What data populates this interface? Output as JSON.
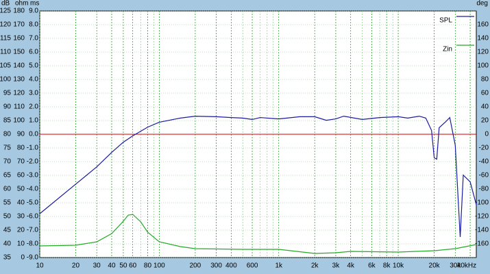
{
  "chart_data": {
    "type": "line",
    "xscale": "log",
    "xlim": [
      10,
      45000
    ],
    "xticks": [
      10,
      20,
      30,
      40,
      50,
      60,
      80,
      100,
      200,
      300,
      400,
      600,
      {
        "value": 1000,
        "label": "1k"
      },
      {
        "value": 2000,
        "label": "2k"
      },
      {
        "value": 3000,
        "label": "3k"
      },
      {
        "value": 4000,
        "label": "4k"
      },
      {
        "value": 6000,
        "label": "6k"
      },
      {
        "value": 8000,
        "label": "8k"
      },
      {
        "value": 10000,
        "label": "10k"
      },
      {
        "value": 20000,
        "label": "20k"
      },
      {
        "value": 30000,
        "label": "30k"
      },
      {
        "value": 40000,
        "label": "40kHz"
      }
    ],
    "ylabel": "dB",
    "ylim": [
      35,
      125
    ],
    "yticks": [
      125,
      120,
      115,
      110,
      105,
      100,
      95,
      90,
      85,
      80,
      75,
      70,
      65,
      60,
      55,
      50,
      45,
      40,
      35
    ],
    "ohm_axis": {
      "label": "ohm",
      "lim": [
        0,
        180
      ],
      "ticks": [
        180,
        170,
        160,
        150,
        140,
        130,
        120,
        110,
        100,
        90,
        80,
        70,
        60,
        50,
        40,
        30,
        20,
        10,
        0
      ]
    },
    "ms_axis": {
      "label": "ms",
      "lim": [
        -9,
        9
      ],
      "ticks": [
        {
          "value": 9,
          "label": "9.0"
        },
        {
          "value": 8,
          "label": "8.0"
        },
        {
          "value": 7,
          "label": "7.0"
        },
        {
          "value": 6,
          "label": "6.0"
        },
        {
          "value": 5,
          "label": "5.0"
        },
        {
          "value": 4,
          "label": "4.0"
        },
        {
          "value": 3,
          "label": "3.0"
        },
        {
          "value": 2,
          "label": "2.0"
        },
        {
          "value": 1,
          "label": "1.0"
        },
        {
          "value": 0,
          "label": "0.0"
        },
        {
          "value": -1,
          "label": "-1.0"
        },
        {
          "value": -2,
          "label": "-2.0"
        },
        {
          "value": -3,
          "label": "-3.0"
        },
        {
          "value": -4,
          "label": "-4.0"
        },
        {
          "value": -5,
          "label": "-5.0"
        },
        {
          "value": -6,
          "label": "-6.0"
        },
        {
          "value": -7,
          "label": "-7.0"
        },
        {
          "value": -8,
          "label": "-8.0"
        },
        {
          "value": -9,
          "label": "-9.0"
        }
      ]
    },
    "y2label": "deg",
    "y2lim": [
      -180,
      180
    ],
    "y2ticks": [
      160,
      140,
      120,
      100,
      80,
      60,
      40,
      20,
      0,
      -20,
      -40,
      -60,
      -80,
      -100,
      -120,
      -140,
      -160
    ],
    "reference_line": {
      "value": 0,
      "axis": "ms",
      "color": "#cc0000"
    },
    "grid": true,
    "legend": "upper right",
    "series": [
      {
        "name": "SPL",
        "color": "#1a1aa0",
        "x": [
          10,
          20,
          30,
          40,
          50,
          60,
          80,
          100,
          150,
          200,
          300,
          400,
          500,
          600,
          700,
          1000,
          1500,
          2000,
          2500,
          3000,
          3500,
          5000,
          7000,
          10000,
          12000,
          15000,
          17000,
          19000,
          20000,
          21000,
          22000,
          25000,
          27000,
          30000,
          33000,
          35000,
          40000,
          45000
        ],
        "values": [
          51.0,
          61.8,
          68.1,
          73.4,
          77.1,
          79.4,
          82.6,
          84.4,
          85.9,
          86.6,
          86.4,
          86.1,
          85.9,
          85.4,
          86.1,
          85.6,
          86.4,
          86.4,
          85.1,
          85.6,
          86.6,
          85.4,
          86.1,
          86.4,
          85.9,
          86.6,
          85.9,
          81.4,
          71.4,
          70.9,
          82.4,
          84.6,
          86.1,
          76.0,
          42.5,
          65.1,
          62.6,
          54.3
        ]
      },
      {
        "name": "Zin",
        "color": "#22aa22",
        "axis": "ohm",
        "x": [
          10,
          20,
          30,
          40,
          50,
          55,
          60,
          70,
          80,
          100,
          150,
          200,
          500,
          1000,
          2000,
          3000,
          4000,
          10000,
          20000,
          30000,
          45000
        ],
        "values": [
          8.5,
          9.0,
          11.5,
          17.5,
          26.5,
          31,
          31.5,
          26,
          18.5,
          11.5,
          8,
          6.5,
          6,
          6,
          3,
          3.5,
          4.5,
          4,
          5,
          6.5,
          9.5
        ]
      }
    ]
  }
}
